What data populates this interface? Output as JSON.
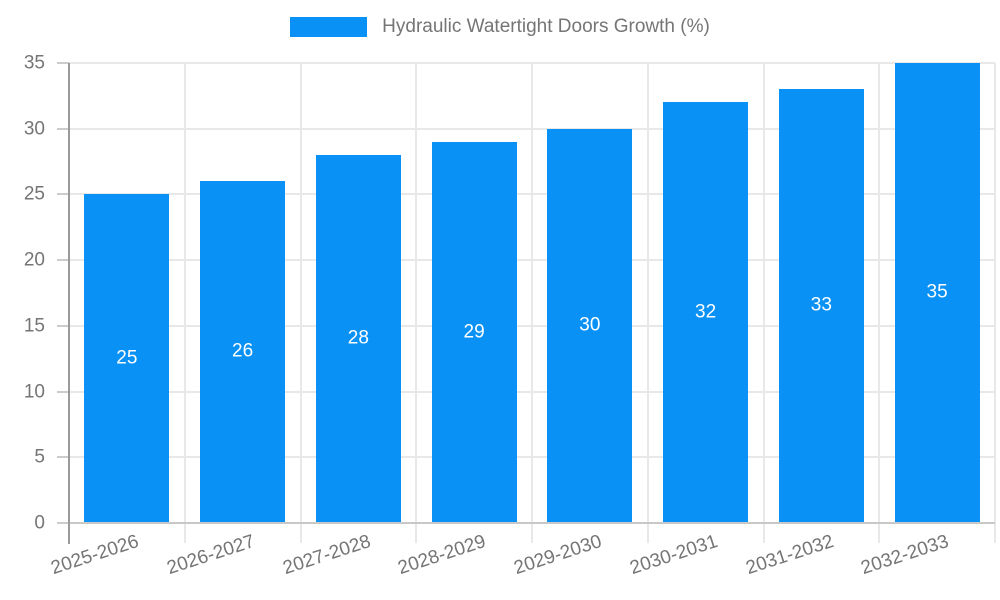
{
  "chart_data": {
    "type": "bar",
    "title": "Hydraulic Watertight Doors Growth (%)",
    "legend": {
      "label": "Hydraulic Watertight Doors Growth (%)",
      "position": "top-center"
    },
    "categories": [
      "2025-2026",
      "2026-2027",
      "2027-2028",
      "2028-2029",
      "2029-2030",
      "2030-2031",
      "2031-2032",
      "2032-2033"
    ],
    "series": [
      {
        "name": "Hydraulic Watertight Doors Growth (%)",
        "values": [
          25,
          26,
          28,
          29,
          30,
          32,
          33,
          35
        ]
      }
    ],
    "xlabel": "",
    "ylabel": "",
    "ylim": [
      0,
      35
    ],
    "y_ticks": [
      0,
      5,
      10,
      15,
      20,
      25,
      30,
      35
    ],
    "grid": true,
    "show_value_labels": true,
    "x_label_rotation_deg": -18,
    "colors": {
      "bar": "#0a91f5",
      "bar_value_label": "#ffffff",
      "axis_text": "#757575",
      "legend_text": "#757575",
      "gridline": "#e8e8e8",
      "axis_line": "#9a9a9a",
      "baseline": "#c8c8c8",
      "background": "#ffffff"
    }
  }
}
